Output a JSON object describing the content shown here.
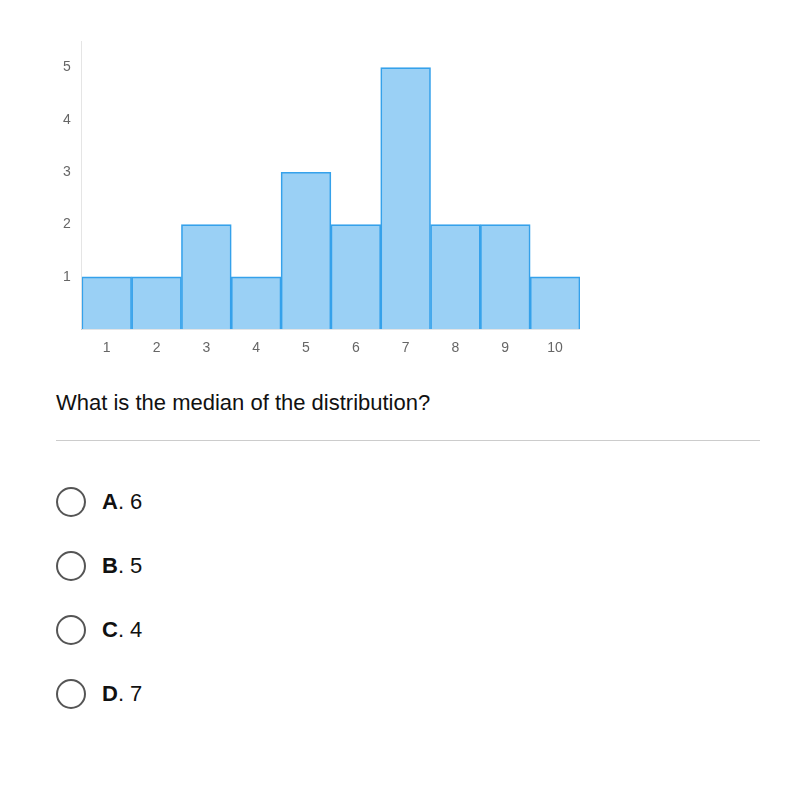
{
  "chart_data": {
    "type": "bar",
    "x": [
      1,
      2,
      3,
      4,
      5,
      6,
      7,
      8,
      9,
      10
    ],
    "values": [
      1,
      1,
      2,
      1,
      3,
      2,
      5,
      2,
      2,
      1
    ],
    "xlim": [
      0.5,
      10.5
    ],
    "xticks": [
      1,
      2,
      3,
      4,
      5,
      6,
      7,
      8,
      9,
      10
    ],
    "ylim": [
      0,
      5.5
    ],
    "yticks": [
      1,
      2,
      3,
      4,
      5
    ],
    "grid": false,
    "legend": false,
    "annotations": [
      "What is the median of the distribution?",
      "A. 6",
      "B. 5",
      "C. 4",
      "D. 7"
    ]
  }
}
